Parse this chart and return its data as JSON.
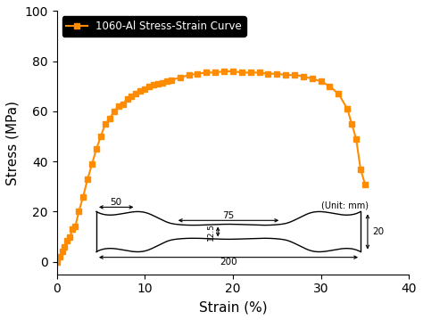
{
  "strain": [
    0,
    0.3,
    0.6,
    0.9,
    1.2,
    1.5,
    1.8,
    2.1,
    2.5,
    3.0,
    3.5,
    4.0,
    4.5,
    5.0,
    5.5,
    6.0,
    6.5,
    7.0,
    7.5,
    8.0,
    8.5,
    9.0,
    9.5,
    10.0,
    10.5,
    11.0,
    11.5,
    12.0,
    12.5,
    13.0,
    14.0,
    15.0,
    16.0,
    17.0,
    18.0,
    19.0,
    20.0,
    21.0,
    22.0,
    23.0,
    24.0,
    25.0,
    26.0,
    27.0,
    28.0,
    29.0,
    30.0,
    31.0,
    32.0,
    33.0,
    33.5,
    34.0,
    34.5,
    35.0
  ],
  "stress": [
    0,
    2,
    4,
    6,
    8.5,
    10,
    13,
    14,
    20,
    26,
    33,
    39,
    45,
    50,
    55,
    57,
    60,
    62,
    63,
    65,
    66,
    67,
    68,
    69,
    70,
    70.5,
    71,
    71.5,
    72,
    72.5,
    73.5,
    74.5,
    75,
    75.5,
    75.5,
    76,
    76,
    75.5,
    75.5,
    75.5,
    75,
    75,
    74.5,
    74.5,
    74,
    73,
    72,
    70,
    67,
    61,
    55,
    49,
    37,
    31
  ],
  "line_color": "#FF8C00",
  "marker": "s",
  "marker_size": 4,
  "legend_label": "1060-Al Stress-Strain Curve",
  "xlabel": "Strain (%)",
  "ylabel": "Stress (MPa)",
  "xlim": [
    0,
    40
  ],
  "ylim": [
    -5,
    100
  ],
  "xticks": [
    0,
    10,
    20,
    30,
    40
  ],
  "yticks": [
    0,
    20,
    40,
    60,
    80,
    100
  ],
  "bg_color": "#ffffff",
  "legend_box_facecolor": "#000000",
  "legend_text_color": "#ffffff",
  "unit_text": "(Unit: mm)",
  "dim_50": "50",
  "dim_75": "75",
  "dim_12_5": "12.5",
  "dim_20": "20",
  "dim_200": "200",
  "spec_x0": 4.5,
  "spec_x1": 34.5,
  "spec_y_top": 20.0,
  "spec_y_bot": 4.0,
  "spec_y_top_inner": 15.0,
  "spec_y_bot_inner": 9.0,
  "spec_trans_left_start": 9.0,
  "spec_trans_left_end": 13.5,
  "spec_trans_right_start": 25.5,
  "spec_trans_right_end": 30.0
}
